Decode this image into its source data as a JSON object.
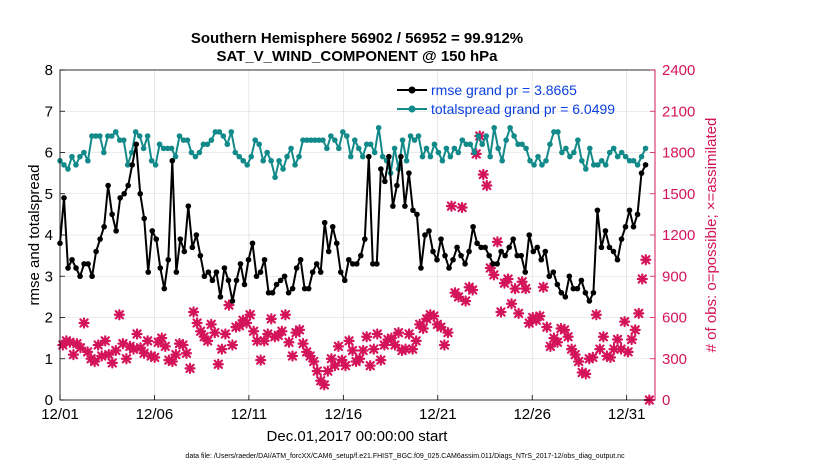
{
  "chart_data": {
    "type": "line",
    "title": "Southern Hemisphere 56902 / 56952 = 99.912%",
    "subtitle": "SAT_V_WIND_COMPONENT @ 150 hPa",
    "xlabel": "Dec.01,2017 00:00:00 start",
    "ylabel": "rmse and totalspread",
    "y2label": "# of obs: o=possible; ×=assimilated",
    "footer": "data file: /Users/raeder/DAI/ATM_forcXX/CAM6_setup/f.e21.FHIST_BGC.f09_025.CAM6assim.011/Diags_NTrS_2017-12/obs_diag_output.nc",
    "xlim": [
      0,
      31.5
    ],
    "ylim": [
      0,
      8
    ],
    "y2lim": [
      0,
      2400
    ],
    "xticks": [
      0,
      5,
      10,
      15,
      20,
      25,
      30
    ],
    "xtick_labels": [
      "12/01",
      "12/06",
      "12/11",
      "12/16",
      "12/21",
      "12/26",
      "12/31"
    ],
    "yticks": [
      "0",
      "1",
      "2",
      "3",
      "4",
      "5",
      "6",
      "7",
      "8"
    ],
    "y2ticks": [
      "0",
      "300",
      "600",
      "900",
      "1200",
      "1500",
      "1800",
      "2100",
      "2400"
    ],
    "colors": {
      "rmse": "#000000",
      "spread": "#138a8a",
      "obs": "#d4145a",
      "legend_text": "#0b3fe0"
    },
    "legend_position": "top-right",
    "series": [
      {
        "name": "rmse grand pr = 3.8665",
        "axis": "left",
        "values": [
          3.8,
          4.9,
          3.2,
          3.4,
          3.2,
          3.0,
          3.3,
          3.3,
          3.0,
          3.6,
          3.9,
          4.2,
          5.2,
          4.5,
          4.1,
          4.9,
          5.0,
          5.2,
          5.7,
          6.2,
          5.0,
          4.4,
          3.1,
          4.1,
          3.9,
          3.2,
          2.7,
          3.4,
          5.8,
          3.1,
          3.9,
          3.6,
          4.7,
          3.7,
          4.0,
          3.5,
          3.0,
          3.1,
          2.9,
          3.1,
          2.5,
          3.2,
          2.9,
          2.4,
          2.9,
          3.3,
          2.8,
          3.4,
          3.8,
          3.0,
          3.1,
          3.4,
          2.6,
          2.6,
          2.8,
          2.9,
          3.0,
          2.6,
          2.7,
          3.2,
          3.4,
          2.7,
          2.7,
          3.1,
          3.3,
          3.1,
          4.3,
          3.6,
          4.2,
          3.8,
          3.1,
          2.9,
          3.4,
          3.3,
          3.3,
          3.5,
          3.9,
          5.9,
          3.3,
          3.3,
          5.6,
          5.3,
          5.9,
          4.7,
          5.2,
          5.9,
          4.7,
          5.5,
          4.6,
          4.5,
          3.2,
          4.0,
          4.1,
          3.6,
          3.4,
          3.9,
          3.5,
          3.2,
          3.4,
          3.7,
          3.5,
          3.3,
          3.6,
          4.2,
          3.8,
          3.7,
          3.7,
          3.5,
          3.3,
          3.3,
          3.6,
          3.5,
          3.7,
          3.9,
          3.5,
          3.5,
          3.1,
          4.0,
          3.6,
          3.7,
          3.4,
          3.6,
          3.0,
          3.1,
          2.8,
          2.6,
          2.5,
          3.0,
          2.7,
          2.7,
          2.9,
          2.6,
          2.4,
          2.6,
          4.6,
          3.7,
          4.1,
          3.7,
          3.6,
          3.4,
          3.9,
          4.2,
          4.6,
          4.2,
          4.5,
          5.5,
          5.7
        ]
      },
      {
        "name": "totalspread grand pr = 6.0499",
        "axis": "left",
        "values": [
          5.8,
          5.7,
          5.6,
          5.9,
          5.7,
          5.9,
          6.0,
          5.8,
          6.4,
          6.4,
          6.4,
          6.0,
          6.4,
          6.4,
          6.5,
          6.3,
          6.3,
          5.7,
          6.0,
          6.5,
          6.4,
          6.1,
          6.4,
          5.8,
          5.7,
          6.2,
          6.1,
          6.1,
          6.1,
          5.9,
          6.4,
          6.3,
          6.3,
          6.0,
          5.9,
          6.0,
          6.2,
          6.2,
          6.3,
          6.5,
          6.5,
          6.4,
          6.2,
          6.5,
          6.0,
          5.9,
          5.8,
          5.7,
          5.9,
          6.3,
          6.2,
          5.8,
          6.0,
          5.8,
          5.4,
          5.8,
          5.6,
          5.9,
          6.1,
          5.7,
          5.9,
          6.3,
          6.3,
          6.3,
          6.3,
          6.3,
          6.3,
          6.1,
          6.4,
          6.3,
          6.1,
          6.5,
          6.4,
          5.9,
          6.3,
          6.1,
          5.9,
          6.2,
          6.2,
          6.0,
          6.6,
          5.9,
          5.8,
          5.5,
          6.1,
          5.6,
          6.3,
          5.8,
          6.4,
          6.3,
          6.4,
          5.9,
          6.1,
          5.9,
          6.2,
          6.0,
          5.8,
          6.1,
          5.9,
          6.1,
          6.0,
          6.3,
          6.2,
          6.2,
          6.0,
          6.4,
          6.2,
          6.4,
          5.9,
          6.6,
          6.1,
          5.8,
          6.3,
          6.6,
          6.4,
          6.2,
          6.2,
          6.1,
          5.8,
          5.7,
          5.9,
          5.7,
          5.8,
          6.2,
          6.5,
          6.5,
          6.0,
          6.1,
          5.9,
          6.0,
          6.3,
          5.8,
          5.6,
          6.1,
          5.7,
          5.7,
          5.8,
          5.7,
          6.0,
          6.1,
          5.9,
          6.0,
          5.9,
          5.8,
          5.8,
          5.7,
          5.9,
          6.1
        ]
      },
      {
        "name": "# of obs assimilated",
        "axis": "right",
        "values": [
          400,
          430,
          420,
          330,
          410,
          380,
          560,
          350,
          300,
          280,
          400,
          320,
          430,
          330,
          270,
          360,
          620,
          410,
          300,
          390,
          370,
          480,
          380,
          340,
          430,
          320,
          310,
          420,
          450,
          390,
          290,
          280,
          330,
          410,
          400,
          340,
          230,
          640,
          560,
          500,
          460,
          430,
          550,
          490,
          260,
          370,
          480,
          690,
          400,
          530,
          540,
          580,
          560,
          620,
          500,
          430,
          290,
          430,
          480,
          590,
          460,
          470,
          500,
          620,
          420,
          320,
          490,
          510,
          410,
          350,
          320,
          280,
          210,
          140,
          110,
          210,
          300,
          250,
          390,
          290,
          250,
          430,
          360,
          280,
          300,
          360,
          460,
          250,
          370,
          480,
          290,
          400,
          440,
          450,
          400,
          490,
          360,
          370,
          480,
          370,
          430,
          550,
          520,
          590,
          620,
          610,
          550,
          530,
          400,
          490,
          1410,
          780,
          750,
          1400,
          720,
          820,
          800,
          1790,
          1920,
          1640,
          1560,
          960,
          910,
          1150,
          640,
          850,
          880,
          700,
          810,
          630,
          860,
          810,
          560,
          600,
          580,
          610,
          820,
          530,
          390,
          450,
          420,
          520,
          510,
          460,
          370,
          330,
          280,
          200,
          190,
          300,
          310,
          620,
          370,
          460,
          320,
          310,
          370,
          440,
          370,
          570,
          350,
          440,
          510,
          630,
          880,
          1020,
          0
        ]
      }
    ]
  }
}
